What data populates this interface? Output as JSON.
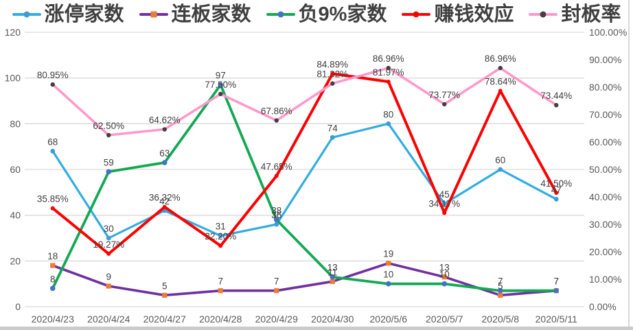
{
  "legend": {
    "items": [
      {
        "label": "涨停家数",
        "line_color": "#31ACE1",
        "marker": "circle",
        "marker_color": "#3E9BD5"
      },
      {
        "label": "连板家数",
        "line_color": "#7030A0",
        "marker": "square",
        "marker_color": "#ED7D31"
      },
      {
        "label": "负9%家数",
        "line_color": "#13A853",
        "marker": "circle",
        "marker_color": "#4472C4"
      },
      {
        "label": "赚钱效应",
        "line_color": "#FE0000",
        "marker": "circle",
        "marker_color": "#FE0000"
      },
      {
        "label": "封板率",
        "line_color": "#FF99CC",
        "marker": "circle",
        "marker_color": "#404040"
      }
    ]
  },
  "chart_data": {
    "type": "line",
    "categories": [
      "2020/4/23",
      "2020/4/24",
      "2020/4/27",
      "2020/4/28",
      "2020/4/29",
      "2020/4/30",
      "2020/5/6",
      "2020/5/7",
      "2020/5/8",
      "2020/5/11"
    ],
    "series": [
      {
        "name": "涨停家数",
        "axis": "left",
        "color": "#31ACE1",
        "line_width": 3.2,
        "marker": "circle",
        "marker_color": "#3E9BD5",
        "marker_size": 3.4,
        "values": [
          68,
          30,
          42,
          31,
          36,
          74,
          80,
          45,
          60,
          47
        ],
        "labels": [
          "68",
          "30",
          "42",
          "31",
          "36",
          "74",
          "80",
          "45",
          "60",
          "47"
        ]
      },
      {
        "name": "连板家数",
        "axis": "left",
        "color": "#7030A0",
        "line_width": 3.6,
        "marker": "square",
        "marker_color": "#ED7D31",
        "marker_size": 3.6,
        "values": [
          18,
          9,
          5,
          7,
          7,
          11,
          19,
          13,
          5,
          7
        ],
        "labels": [
          "18",
          "9",
          "5",
          "7",
          "7",
          "11",
          "19",
          "13",
          "5",
          "7"
        ]
      },
      {
        "name": "负9%家数",
        "axis": "left",
        "color": "#13A853",
        "line_width": 3.8,
        "marker": "circle",
        "marker_color": "#4472C4",
        "marker_size": 3.8,
        "values": [
          8,
          59,
          63,
          97,
          38,
          13,
          10,
          10,
          7,
          7
        ],
        "labels": [
          "8",
          "59",
          "63",
          "97",
          "38",
          "13",
          "10",
          "10",
          "7",
          "7"
        ]
      },
      {
        "name": "赚钱效应",
        "axis": "right",
        "color": "#FE0000",
        "line_width": 4.0,
        "marker": "circle",
        "marker_color": "#FE0000",
        "marker_size": 3.0,
        "values": [
          35.85,
          19.27,
          36.32,
          22.2,
          47.65,
          84.89,
          81.97,
          34.17,
          78.64,
          41.5
        ],
        "labels": [
          "35.85%",
          "19.27%",
          "36.32%",
          "22.20%",
          "47.65%",
          "84.89%",
          "81.97%",
          "34.17%",
          "78.64%",
          "41.50%"
        ]
      },
      {
        "name": "封板率",
        "axis": "right",
        "color": "#FF99CC",
        "line_width": 3.6,
        "marker": "circle",
        "marker_color": "#404040",
        "marker_size": 3.2,
        "values": [
          80.95,
          62.5,
          64.62,
          77.5,
          67.86,
          81.32,
          86.96,
          73.77,
          86.96,
          73.44
        ],
        "labels": [
          "80.95%",
          "62.50%",
          "64.62%",
          "77.50%",
          "67.86%",
          "81.32%",
          "86.96%",
          "73.77%",
          "86.96%",
          "73.44%"
        ]
      }
    ],
    "left_axis": {
      "min": 0,
      "max": 120,
      "step": 20,
      "ticks": [
        "0",
        "20",
        "40",
        "60",
        "80",
        "100",
        "120"
      ]
    },
    "right_axis": {
      "min": 0,
      "max": 100,
      "step": 10,
      "ticks": [
        "0.00%",
        "10.00%",
        "20.00%",
        "30.00%",
        "40.00%",
        "50.00%",
        "60.00%",
        "70.00%",
        "80.00%",
        "90.00%",
        "100.00%"
      ]
    },
    "grid": true,
    "legend_position": "top",
    "colors": {
      "gridline": "#d9d9d9",
      "axis_text": "#595959",
      "data_label": "#3f3f3f"
    }
  }
}
